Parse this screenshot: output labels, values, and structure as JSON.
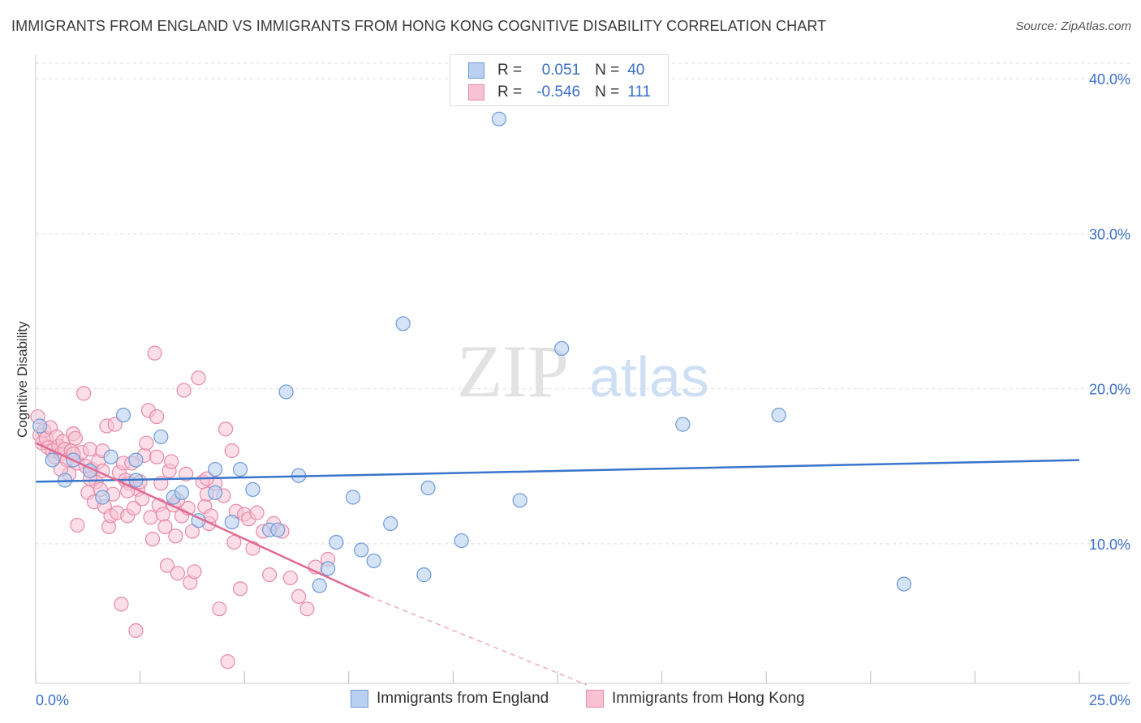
{
  "title": "IMMIGRANTS FROM ENGLAND VS IMMIGRANTS FROM HONG KONG COGNITIVE DISABILITY CORRELATION CHART",
  "source": "Source: ZipAtlas.com",
  "watermark": {
    "zip": "ZIP",
    "atlas": "atlas"
  },
  "legend": {
    "england": {
      "r_label": "R =",
      "r_value": "0.051",
      "n_label": "N =",
      "n_value": "40"
    },
    "hongkong": {
      "r_label": "R =",
      "r_value": "-0.546",
      "n_label": "N =",
      "n_value": "111"
    }
  },
  "colors": {
    "england_fill": "#b9d0f0",
    "england_stroke": "#6e9ad8",
    "england_line": "#3a74cc",
    "hongkong_fill": "#f7c3d3",
    "hongkong_stroke": "#e88aa8",
    "hongkong_line": "#e06a93",
    "axis_text": "#3a6fc9",
    "grid": "#dddddd"
  },
  "chart_data": {
    "type": "scatter",
    "title": "IMMIGRANTS FROM ENGLAND VS IMMIGRANTS FROM HONG KONG COGNITIVE DISABILITY CORRELATION CHART",
    "xlabel": "",
    "ylabel": "Cognitive Disability",
    "xlim": [
      0,
      25
    ],
    "ylim": [
      1,
      41
    ],
    "x_tick_labels": [
      "0.0%",
      "25.0%"
    ],
    "y_ticks": [
      10,
      20,
      30,
      40
    ],
    "y_tick_labels": [
      "10.0%",
      "20.0%",
      "30.0%",
      "40.0%"
    ],
    "grid": true,
    "legend_position": "bottom",
    "series": [
      {
        "name": "Immigrants from England",
        "trend": {
          "x": [
            0,
            25
          ],
          "y": [
            14.0,
            15.4
          ]
        },
        "points": [
          [
            0.1,
            17.6
          ],
          [
            0.4,
            15.4
          ],
          [
            0.9,
            15.4
          ],
          [
            0.7,
            14.1
          ],
          [
            1.3,
            14.7
          ],
          [
            1.6,
            13.0
          ],
          [
            1.8,
            15.6
          ],
          [
            2.1,
            18.3
          ],
          [
            2.4,
            15.4
          ],
          [
            2.4,
            14.1
          ],
          [
            3.0,
            16.9
          ],
          [
            3.3,
            13.0
          ],
          [
            3.5,
            13.3
          ],
          [
            3.9,
            11.5
          ],
          [
            4.3,
            13.3
          ],
          [
            4.3,
            14.8
          ],
          [
            4.7,
            11.4
          ],
          [
            4.9,
            14.8
          ],
          [
            5.2,
            13.5
          ],
          [
            5.6,
            10.9
          ],
          [
            5.8,
            10.9
          ],
          [
            6.0,
            19.8
          ],
          [
            6.3,
            14.4
          ],
          [
            6.8,
            7.3
          ],
          [
            7.0,
            8.4
          ],
          [
            7.2,
            10.1
          ],
          [
            7.6,
            13.0
          ],
          [
            7.8,
            9.6
          ],
          [
            8.1,
            8.9
          ],
          [
            8.5,
            11.3
          ],
          [
            8.8,
            24.2
          ],
          [
            9.3,
            8.0
          ],
          [
            9.4,
            13.6
          ],
          [
            10.2,
            10.2
          ],
          [
            11.1,
            37.4
          ],
          [
            11.6,
            12.8
          ],
          [
            12.6,
            22.6
          ],
          [
            15.5,
            17.7
          ],
          [
            17.8,
            18.3
          ],
          [
            20.8,
            7.4
          ]
        ]
      },
      {
        "name": "Immigrants from Hong Kong",
        "trend": {
          "x": [
            0,
            8.0
          ],
          "y": [
            16.5,
            6.6
          ]
        },
        "trend_dashed": {
          "x": [
            8.0,
            13.2
          ],
          "y": [
            6.6,
            0.9
          ]
        },
        "points": [
          [
            0.05,
            18.2
          ],
          [
            0.1,
            17.0
          ],
          [
            0.15,
            16.5
          ],
          [
            0.2,
            17.3
          ],
          [
            0.25,
            16.8
          ],
          [
            0.3,
            16.2
          ],
          [
            0.35,
            17.5
          ],
          [
            0.4,
            16.0
          ],
          [
            0.45,
            15.6
          ],
          [
            0.5,
            16.9
          ],
          [
            0.55,
            16.3
          ],
          [
            0.6,
            15.8
          ],
          [
            0.65,
            16.6
          ],
          [
            0.7,
            16.1
          ],
          [
            0.75,
            15.4
          ],
          [
            0.8,
            14.5
          ],
          [
            0.85,
            16.0
          ],
          [
            0.9,
            17.1
          ],
          [
            0.95,
            16.8
          ],
          [
            1.0,
            15.2
          ],
          [
            1.0,
            11.2
          ],
          [
            1.1,
            15.9
          ],
          [
            1.15,
            19.7
          ],
          [
            1.2,
            15.0
          ],
          [
            1.25,
            13.3
          ],
          [
            1.3,
            16.1
          ],
          [
            1.35,
            14.8
          ],
          [
            1.4,
            12.7
          ],
          [
            1.45,
            14.0
          ],
          [
            1.5,
            15.3
          ],
          [
            1.55,
            13.5
          ],
          [
            1.6,
            14.7
          ],
          [
            1.65,
            12.4
          ],
          [
            1.7,
            17.6
          ],
          [
            1.75,
            11.1
          ],
          [
            1.8,
            11.8
          ],
          [
            1.85,
            13.2
          ],
          [
            1.9,
            17.7
          ],
          [
            1.95,
            12.0
          ],
          [
            2.0,
            14.6
          ],
          [
            2.05,
            6.1
          ],
          [
            2.1,
            15.2
          ],
          [
            2.15,
            14.1
          ],
          [
            2.2,
            11.8
          ],
          [
            2.25,
            13.9
          ],
          [
            2.3,
            15.2
          ],
          [
            2.35,
            12.3
          ],
          [
            2.4,
            4.4
          ],
          [
            2.45,
            13.5
          ],
          [
            2.5,
            14.0
          ],
          [
            2.55,
            12.9
          ],
          [
            2.6,
            15.7
          ],
          [
            2.65,
            16.5
          ],
          [
            2.7,
            18.6
          ],
          [
            2.75,
            11.7
          ],
          [
            2.8,
            10.3
          ],
          [
            2.85,
            22.3
          ],
          [
            2.9,
            18.2
          ],
          [
            2.95,
            12.5
          ],
          [
            3.0,
            13.9
          ],
          [
            3.05,
            11.9
          ],
          [
            3.1,
            11.1
          ],
          [
            3.15,
            8.6
          ],
          [
            3.2,
            14.7
          ],
          [
            3.25,
            15.3
          ],
          [
            3.3,
            12.5
          ],
          [
            3.35,
            10.5
          ],
          [
            3.4,
            8.1
          ],
          [
            3.5,
            11.8
          ],
          [
            3.55,
            19.9
          ],
          [
            3.6,
            14.5
          ],
          [
            3.65,
            12.3
          ],
          [
            3.7,
            7.5
          ],
          [
            3.75,
            10.8
          ],
          [
            3.8,
            8.2
          ],
          [
            3.9,
            20.7
          ],
          [
            4.0,
            14.0
          ],
          [
            4.05,
            12.4
          ],
          [
            4.1,
            13.2
          ],
          [
            4.15,
            11.3
          ],
          [
            4.2,
            11.8
          ],
          [
            4.3,
            13.9
          ],
          [
            4.4,
            5.8
          ],
          [
            4.5,
            13.1
          ],
          [
            4.55,
            17.4
          ],
          [
            4.6,
            2.4
          ],
          [
            4.7,
            16.0
          ],
          [
            4.75,
            10.1
          ],
          [
            4.8,
            12.1
          ],
          [
            4.9,
            7.1
          ],
          [
            5.0,
            11.9
          ],
          [
            5.1,
            11.6
          ],
          [
            5.2,
            9.7
          ],
          [
            5.3,
            12.0
          ],
          [
            5.45,
            10.8
          ],
          [
            5.6,
            8.0
          ],
          [
            5.7,
            11.3
          ],
          [
            5.9,
            10.8
          ],
          [
            6.1,
            7.8
          ],
          [
            6.3,
            6.6
          ],
          [
            6.5,
            5.8
          ],
          [
            6.7,
            8.5
          ],
          [
            7.0,
            9.0
          ],
          [
            1.3,
            14.2
          ],
          [
            0.6,
            14.8
          ],
          [
            2.2,
            13.4
          ],
          [
            1.6,
            16.0
          ],
          [
            0.9,
            15.8
          ],
          [
            3.4,
            12.8
          ],
          [
            2.9,
            15.6
          ],
          [
            4.1,
            14.2
          ]
        ]
      }
    ]
  },
  "bottom_legend": {
    "england_label": "Immigrants from England",
    "hongkong_label": "Immigrants from Hong Kong"
  }
}
